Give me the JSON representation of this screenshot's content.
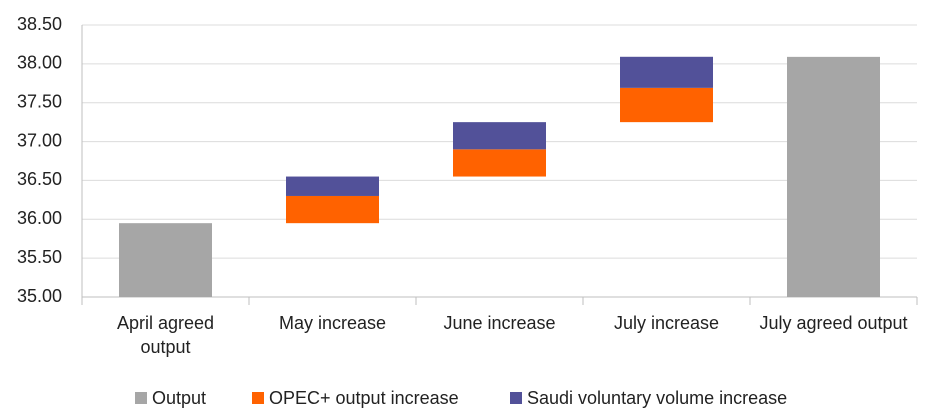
{
  "chart_data": {
    "type": "waterfall",
    "categories": [
      "April agreed output",
      "May increase",
      "June increase",
      "July increase",
      "July agreed output"
    ],
    "series": [
      {
        "name": "Output",
        "color": "#a6a6a6",
        "values": [
          35.95,
          null,
          null,
          null,
          38.09
        ]
      },
      {
        "name": "OPEC+ output increase",
        "color": "#ff6200",
        "values": [
          null,
          0.35,
          0.35,
          0.441,
          null
        ]
      },
      {
        "name": "Saudi voluntary volume increase",
        "color": "#525199",
        "values": [
          null,
          0.25,
          0.35,
          0.4,
          null
        ]
      }
    ],
    "ylim": [
      35,
      38.5
    ],
    "yticks": [
      {
        "value": 35,
        "label": "35.00"
      },
      {
        "value": 35.5,
        "label": "35.50"
      },
      {
        "value": 36,
        "label": "36.00"
      },
      {
        "value": 36.5,
        "label": "36.50"
      },
      {
        "value": 37,
        "label": "37.00"
      },
      {
        "value": 37.5,
        "label": "37.50"
      },
      {
        "value": 38,
        "label": "38.00"
      },
      {
        "value": 38.5,
        "label": "38.50"
      }
    ],
    "grid": true,
    "legend": "bottom"
  }
}
